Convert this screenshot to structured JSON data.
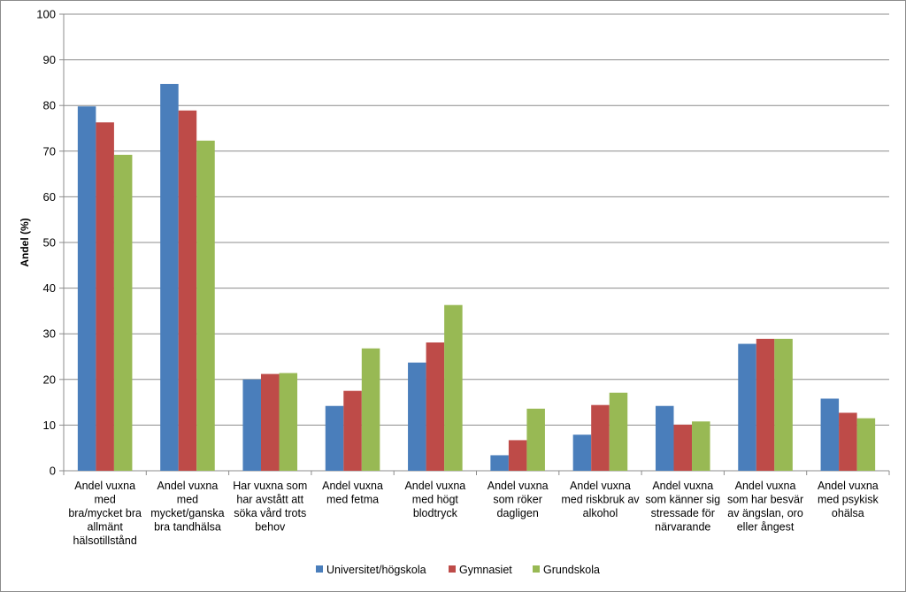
{
  "chart_data": {
    "type": "bar",
    "ylabel": "Andel (%)",
    "xlabel": "",
    "ylim": [
      0,
      100
    ],
    "yticks": [
      0,
      10,
      20,
      30,
      40,
      50,
      60,
      70,
      80,
      90,
      100
    ],
    "grid": true,
    "legend_position": "bottom",
    "categories": [
      [
        "Andel vuxna",
        "med",
        "bra/mycket bra",
        "allmänt",
        "hälsotillstånd"
      ],
      [
        "Andel vuxna",
        "med",
        "mycket/ganska",
        "bra tandhälsa"
      ],
      [
        "Har vuxna som",
        "har avstått att",
        "söka vård trots",
        "behov"
      ],
      [
        "Andel vuxna",
        "med fetma"
      ],
      [
        "Andel vuxna",
        "med högt",
        "blodtryck"
      ],
      [
        "Andel vuxna",
        "som röker",
        "dagligen"
      ],
      [
        "Andel vuxna",
        "med riskbruk av",
        "alkohol"
      ],
      [
        "Andel vuxna",
        "som känner sig",
        "stressade för",
        "närvarande"
      ],
      [
        "Andel vuxna",
        "som har besvär",
        "av ängslan, oro",
        "eller ångest"
      ],
      [
        "Andel vuxna",
        "med psykisk",
        "ohälsa"
      ]
    ],
    "series": [
      {
        "name": "Universitet/högskola",
        "color": "#4a7ebb",
        "values": [
          79.8,
          84.7,
          20.0,
          14.2,
          23.7,
          3.4,
          7.9,
          14.2,
          27.8,
          15.8
        ]
      },
      {
        "name": "Gymnasiet",
        "color": "#be4b48",
        "values": [
          76.3,
          78.9,
          21.2,
          17.5,
          28.1,
          6.7,
          14.4,
          10.1,
          28.9,
          12.7
        ]
      },
      {
        "name": "Grundskola",
        "color": "#98b954",
        "values": [
          69.2,
          72.3,
          21.4,
          26.8,
          36.3,
          13.6,
          17.1,
          10.8,
          28.9,
          11.5
        ]
      }
    ]
  }
}
